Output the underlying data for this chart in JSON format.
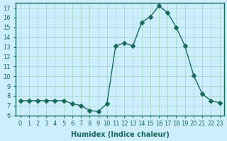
{
  "x": [
    0,
    1,
    2,
    3,
    4,
    5,
    6,
    7,
    8,
    9,
    10,
    11,
    12,
    13,
    14,
    15,
    16,
    17,
    18,
    19,
    20,
    21,
    22,
    23
  ],
  "y": [
    7.5,
    7.5,
    7.5,
    7.5,
    7.5,
    7.5,
    7.2,
    7.0,
    6.5,
    6.4,
    7.2,
    13.1,
    13.4,
    13.1,
    15.5,
    16.1,
    17.2,
    16.5,
    15.0,
    13.1,
    10.1,
    8.2,
    7.5,
    7.3
  ],
  "line_color": "#1a6b5a",
  "marker": "D",
  "marker_size": 3,
  "background_color": "#cceeff",
  "grid_color": "#aaddcc",
  "xlabel": "Humidex (Indice chaleur)",
  "xlim": [
    -0.5,
    23.5
  ],
  "ylim": [
    6,
    17.5
  ],
  "yticks": [
    6,
    7,
    8,
    9,
    10,
    11,
    12,
    13,
    14,
    15,
    16,
    17
  ],
  "xticks": [
    0,
    1,
    2,
    3,
    4,
    5,
    6,
    7,
    8,
    9,
    10,
    11,
    12,
    13,
    14,
    15,
    16,
    17,
    18,
    19,
    20,
    21,
    22,
    23
  ],
  "tick_fontsize": 6,
  "xlabel_fontsize": 7
}
